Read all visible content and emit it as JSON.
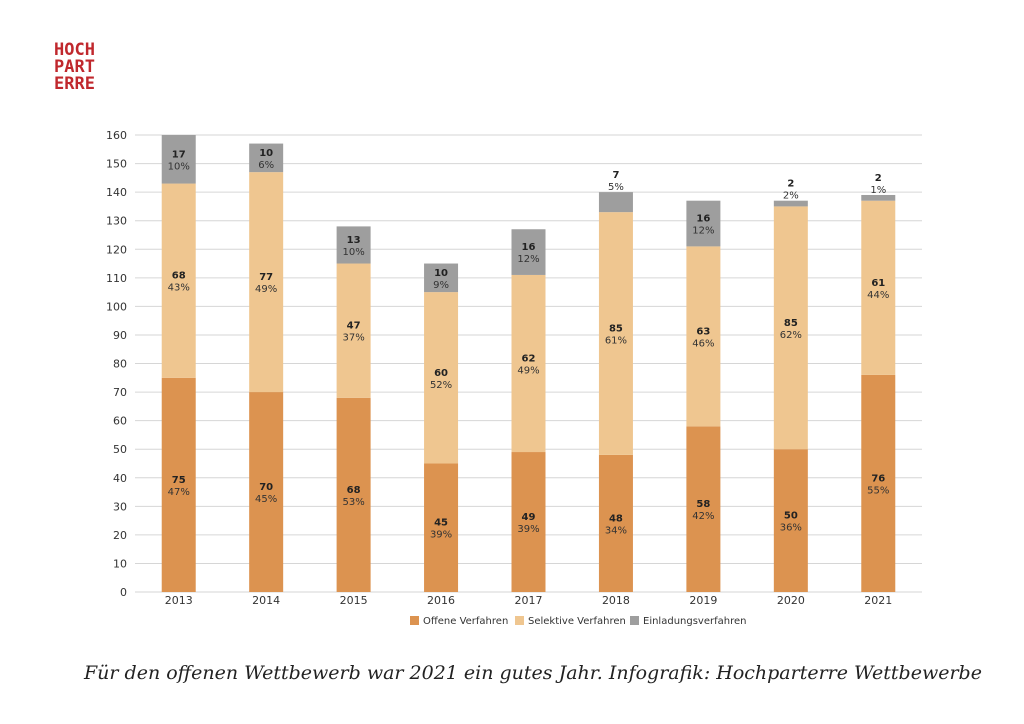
{
  "logo": {
    "line1": "HOCH",
    "line2": "PART",
    "line3": "ERRE"
  },
  "caption": "Für den offenen Wettbewerb war 2021 ein gutes Jahr. Infografik: Hochparterre Wettbewerbe",
  "colors": {
    "offene": "#dc9350",
    "selektive": "#efc690",
    "einladung": "#9e9e9e",
    "grid": "#d6d6d6"
  },
  "chart_data": {
    "type": "bar",
    "stacked": true,
    "categories": [
      "2013",
      "2014",
      "2015",
      "2016",
      "2017",
      "2018",
      "2019",
      "2020",
      "2021"
    ],
    "ylim": [
      0,
      160
    ],
    "yticks": [
      0,
      10,
      20,
      30,
      40,
      50,
      60,
      70,
      80,
      90,
      100,
      110,
      120,
      130,
      140,
      150,
      160
    ],
    "grid": true,
    "legend_position": "bottom",
    "series": [
      {
        "name": "Offene Verfahren",
        "values": [
          75,
          70,
          68,
          45,
          49,
          48,
          58,
          50,
          76
        ],
        "percents": [
          "47%",
          "45%",
          "53%",
          "39%",
          "39%",
          "34%",
          "42%",
          "36%",
          "55%"
        ]
      },
      {
        "name": "Selektive Verfahren",
        "values": [
          68,
          77,
          47,
          60,
          62,
          85,
          63,
          85,
          61
        ],
        "percents": [
          "43%",
          "49%",
          "37%",
          "52%",
          "49%",
          "61%",
          "46%",
          "62%",
          "44%"
        ]
      },
      {
        "name": "Einladungsverfahren",
        "values": [
          17,
          10,
          13,
          10,
          16,
          7,
          16,
          2,
          2
        ],
        "percents": [
          "10%",
          "6%",
          "10%",
          "9%",
          "12%",
          "5%",
          "12%",
          "2%",
          "1%"
        ]
      }
    ]
  }
}
